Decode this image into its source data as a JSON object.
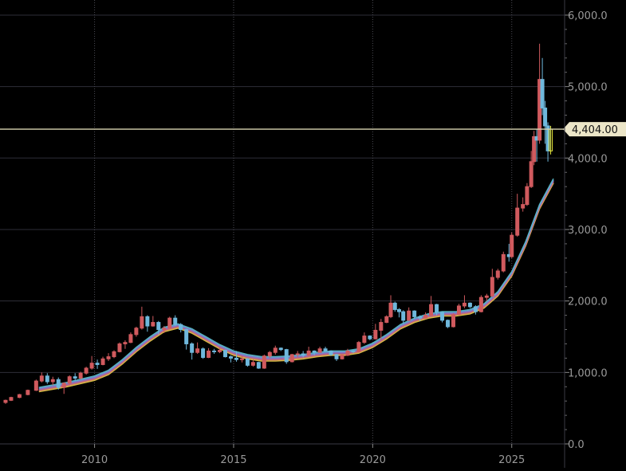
{
  "chart_data": {
    "type": "candlestick",
    "title": "",
    "xlabel": "",
    "ylabel": "",
    "xlim": [
      2006.6,
      2026.9
    ],
    "ylim": [
      0,
      6100
    ],
    "yticks": [
      {
        "value": 0,
        "label": "0.0"
      },
      {
        "value": 1000,
        "label": "1,000.0"
      },
      {
        "value": 2000,
        "label": "2,000.0"
      },
      {
        "value": 3000,
        "label": "3,000.0"
      },
      {
        "value": 4000,
        "label": "4,000.0"
      },
      {
        "value": 5000,
        "label": "5,000.0"
      },
      {
        "value": 6000,
        "label": "6,000.0"
      }
    ],
    "xticks": [
      {
        "value": 2010,
        "label": "2010"
      },
      {
        "value": 2015,
        "label": "2015"
      },
      {
        "value": 2020,
        "label": "2020"
      },
      {
        "value": 2025,
        "label": "2025"
      }
    ],
    "grid": true,
    "current_price": {
      "value": 4404.0,
      "label": "4,404.00"
    },
    "colors": {
      "background": "#000000",
      "grid": "#2e2e38",
      "axis_text": "#9a9a9a",
      "up_candle": "#d05a5e",
      "down_candle": "#6fb8dc",
      "price_line": "#d8d2b0",
      "price_tag": "#ece6c8",
      "highlight_candle": "#e6e63a",
      "ma_lines": [
        "#e0c848",
        "#d87a6a",
        "#a96ab0",
        "#7a8ad8",
        "#5ab8c8"
      ]
    },
    "series": [
      {
        "type": "ohlc",
        "points": [
          [
            2006.8,
            580,
            620,
            560,
            610
          ],
          [
            2007.0,
            610,
            660,
            600,
            650
          ],
          [
            2007.3,
            650,
            700,
            640,
            690
          ],
          [
            2007.6,
            690,
            760,
            680,
            750
          ],
          [
            2007.9,
            750,
            900,
            740,
            880
          ],
          [
            2008.1,
            880,
            1000,
            860,
            950
          ],
          [
            2008.3,
            950,
            990,
            840,
            870
          ],
          [
            2008.5,
            870,
            940,
            820,
            900
          ],
          [
            2008.7,
            900,
            930,
            760,
            790
          ],
          [
            2008.9,
            790,
            860,
            700,
            850
          ],
          [
            2009.1,
            850,
            960,
            820,
            940
          ],
          [
            2009.3,
            940,
            990,
            880,
            920
          ],
          [
            2009.5,
            920,
            1010,
            900,
            990
          ],
          [
            2009.7,
            990,
            1080,
            970,
            1060
          ],
          [
            2009.9,
            1060,
            1230,
            1040,
            1130
          ],
          [
            2010.1,
            1130,
            1180,
            1050,
            1110
          ],
          [
            2010.3,
            1110,
            1220,
            1100,
            1190
          ],
          [
            2010.5,
            1190,
            1270,
            1160,
            1220
          ],
          [
            2010.7,
            1220,
            1310,
            1200,
            1290
          ],
          [
            2010.9,
            1290,
            1420,
            1280,
            1400
          ],
          [
            2011.1,
            1400,
            1450,
            1330,
            1420
          ],
          [
            2011.3,
            1420,
            1560,
            1410,
            1530
          ],
          [
            2011.5,
            1530,
            1640,
            1500,
            1620
          ],
          [
            2011.7,
            1620,
            1920,
            1600,
            1780
          ],
          [
            2011.9,
            1780,
            1800,
            1570,
            1650
          ],
          [
            2012.1,
            1650,
            1790,
            1640,
            1700
          ],
          [
            2012.3,
            1700,
            1720,
            1530,
            1600
          ],
          [
            2012.5,
            1600,
            1650,
            1550,
            1620
          ],
          [
            2012.7,
            1620,
            1780,
            1610,
            1760
          ],
          [
            2012.9,
            1760,
            1800,
            1650,
            1670
          ],
          [
            2013.1,
            1670,
            1690,
            1560,
            1600
          ],
          [
            2013.3,
            1600,
            1610,
            1320,
            1400
          ],
          [
            2013.5,
            1400,
            1420,
            1180,
            1280
          ],
          [
            2013.7,
            1280,
            1420,
            1260,
            1330
          ],
          [
            2013.9,
            1330,
            1350,
            1190,
            1210
          ],
          [
            2014.1,
            1210,
            1340,
            1200,
            1300
          ],
          [
            2014.3,
            1300,
            1330,
            1260,
            1290
          ],
          [
            2014.5,
            1290,
            1345,
            1270,
            1310
          ],
          [
            2014.7,
            1310,
            1320,
            1210,
            1220
          ],
          [
            2014.9,
            1220,
            1240,
            1140,
            1200
          ],
          [
            2015.1,
            1200,
            1300,
            1150,
            1180
          ],
          [
            2015.3,
            1180,
            1230,
            1140,
            1190
          ],
          [
            2015.5,
            1190,
            1200,
            1080,
            1100
          ],
          [
            2015.7,
            1100,
            1180,
            1080,
            1140
          ],
          [
            2015.9,
            1140,
            1150,
            1050,
            1060
          ],
          [
            2016.1,
            1060,
            1250,
            1050,
            1230
          ],
          [
            2016.3,
            1230,
            1300,
            1200,
            1280
          ],
          [
            2016.5,
            1280,
            1375,
            1250,
            1340
          ],
          [
            2016.7,
            1340,
            1350,
            1300,
            1320
          ],
          [
            2016.9,
            1320,
            1330,
            1120,
            1150
          ],
          [
            2017.1,
            1150,
            1260,
            1140,
            1250
          ],
          [
            2017.3,
            1250,
            1300,
            1210,
            1260
          ],
          [
            2017.5,
            1260,
            1300,
            1210,
            1240
          ],
          [
            2017.7,
            1240,
            1360,
            1230,
            1300
          ],
          [
            2017.9,
            1300,
            1310,
            1240,
            1280
          ],
          [
            2018.1,
            1280,
            1360,
            1300,
            1330
          ],
          [
            2018.3,
            1330,
            1360,
            1290,
            1300
          ],
          [
            2018.5,
            1300,
            1310,
            1230,
            1250
          ],
          [
            2018.7,
            1250,
            1260,
            1160,
            1190
          ],
          [
            2018.9,
            1190,
            1250,
            1180,
            1240
          ],
          [
            2019.1,
            1240,
            1330,
            1230,
            1300
          ],
          [
            2019.3,
            1300,
            1310,
            1270,
            1290
          ],
          [
            2019.5,
            1290,
            1440,
            1280,
            1420
          ],
          [
            2019.7,
            1420,
            1560,
            1400,
            1510
          ],
          [
            2019.9,
            1510,
            1520,
            1450,
            1470
          ],
          [
            2020.1,
            1470,
            1680,
            1460,
            1590
          ],
          [
            2020.3,
            1590,
            1750,
            1450,
            1700
          ],
          [
            2020.5,
            1700,
            1800,
            1690,
            1780
          ],
          [
            2020.65,
            1780,
            2080,
            1760,
            1970
          ],
          [
            2020.8,
            1970,
            1990,
            1850,
            1880
          ],
          [
            2020.95,
            1880,
            1900,
            1770,
            1850
          ],
          [
            2021.1,
            1850,
            1870,
            1680,
            1730
          ],
          [
            2021.3,
            1730,
            1910,
            1720,
            1860
          ],
          [
            2021.5,
            1860,
            1870,
            1750,
            1780
          ],
          [
            2021.7,
            1780,
            1800,
            1720,
            1760
          ],
          [
            2021.9,
            1760,
            1840,
            1750,
            1800
          ],
          [
            2022.1,
            1800,
            2070,
            1790,
            1950
          ],
          [
            2022.3,
            1950,
            1960,
            1800,
            1840
          ],
          [
            2022.5,
            1840,
            1850,
            1700,
            1730
          ],
          [
            2022.7,
            1730,
            1740,
            1620,
            1640
          ],
          [
            2022.9,
            1640,
            1830,
            1630,
            1810
          ],
          [
            2023.1,
            1810,
            1960,
            1800,
            1930
          ],
          [
            2023.3,
            1930,
            2080,
            1900,
            1970
          ],
          [
            2023.5,
            1970,
            1980,
            1900,
            1920
          ],
          [
            2023.7,
            1920,
            1940,
            1810,
            1850
          ],
          [
            2023.9,
            1850,
            2080,
            1840,
            2050
          ],
          [
            2024.1,
            2050,
            2100,
            2000,
            2070
          ],
          [
            2024.3,
            2070,
            2450,
            2050,
            2330
          ],
          [
            2024.5,
            2330,
            2450,
            2300,
            2420
          ],
          [
            2024.7,
            2420,
            2690,
            2400,
            2650
          ],
          [
            2024.9,
            2650,
            2800,
            2550,
            2620
          ],
          [
            2025.0,
            2620,
            2960,
            2600,
            2920
          ],
          [
            2025.2,
            2920,
            3500,
            2900,
            3300
          ],
          [
            2025.4,
            3300,
            3450,
            3250,
            3350
          ],
          [
            2025.55,
            3350,
            3650,
            3330,
            3600
          ],
          [
            2025.7,
            3600,
            4100,
            3580,
            3950
          ],
          [
            2025.8,
            3950,
            4380,
            3900,
            4300
          ],
          [
            2025.9,
            4300,
            4400,
            3950,
            4250
          ],
          [
            2026.0,
            4250,
            5600,
            4200,
            5100
          ],
          [
            2026.1,
            5100,
            5400,
            4600,
            4700
          ],
          [
            2026.2,
            4700,
            4800,
            4200,
            4450
          ],
          [
            2026.3,
            4450,
            4500,
            3950,
            4100
          ],
          [
            2026.4,
            4100,
            4450,
            4050,
            4404
          ]
        ]
      },
      {
        "type": "line",
        "points": [
          [
            2008.0,
            760
          ],
          [
            2009.0,
            830
          ],
          [
            2010.0,
            920
          ],
          [
            2010.5,
            1000
          ],
          [
            2011.0,
            1150
          ],
          [
            2011.5,
            1320
          ],
          [
            2012.0,
            1470
          ],
          [
            2012.5,
            1600
          ],
          [
            2013.0,
            1650
          ],
          [
            2013.5,
            1580
          ],
          [
            2014.0,
            1470
          ],
          [
            2014.5,
            1360
          ],
          [
            2015.0,
            1270
          ],
          [
            2015.5,
            1220
          ],
          [
            2016.0,
            1190
          ],
          [
            2016.5,
            1190
          ],
          [
            2017.0,
            1200
          ],
          [
            2017.5,
            1220
          ],
          [
            2018.0,
            1250
          ],
          [
            2018.5,
            1270
          ],
          [
            2019.0,
            1270
          ],
          [
            2019.5,
            1300
          ],
          [
            2020.0,
            1380
          ],
          [
            2020.5,
            1500
          ],
          [
            2021.0,
            1640
          ],
          [
            2021.5,
            1730
          ],
          [
            2022.0,
            1790
          ],
          [
            2022.5,
            1820
          ],
          [
            2023.0,
            1820
          ],
          [
            2023.5,
            1850
          ],
          [
            2024.0,
            1930
          ],
          [
            2024.5,
            2100
          ],
          [
            2025.0,
            2380
          ],
          [
            2025.5,
            2800
          ],
          [
            2026.0,
            3320
          ],
          [
            2026.5,
            3680
          ]
        ]
      }
    ]
  }
}
